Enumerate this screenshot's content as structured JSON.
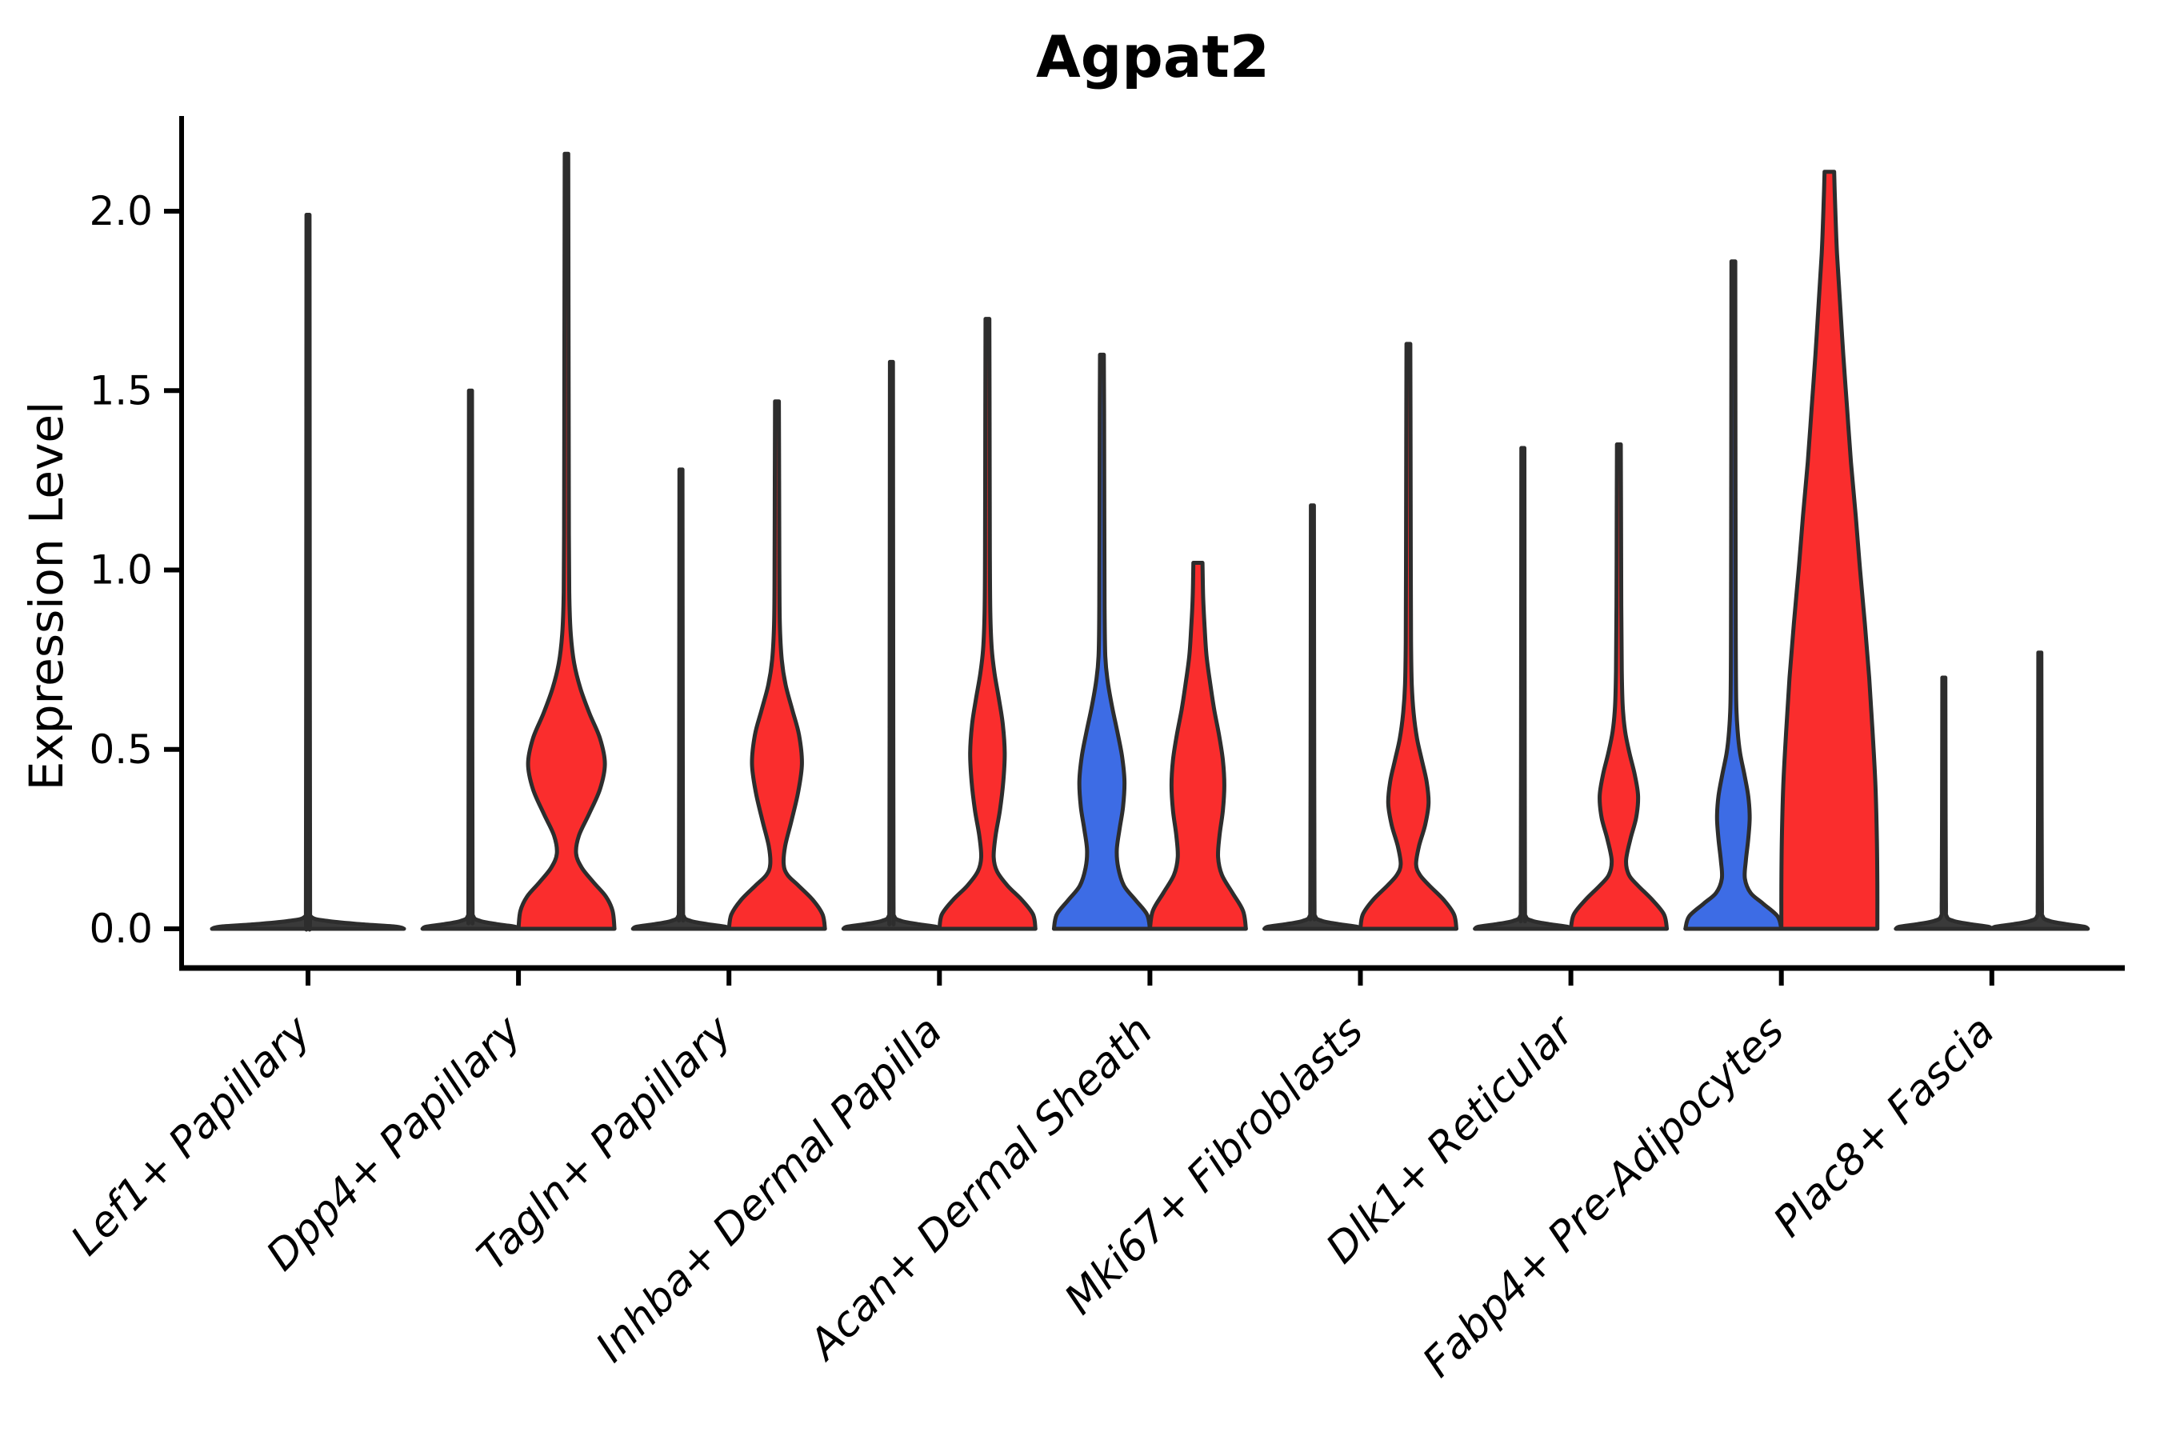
{
  "chart_data": {
    "type": "violin",
    "title": "Agpat2",
    "ylabel": "Expression Level",
    "xlabel": "",
    "grid": false,
    "legend": "none",
    "ylim": [
      -0.11,
      2.27
    ],
    "y_ticks": [
      {
        "value": 0.0,
        "label": "0.0"
      },
      {
        "value": 0.5,
        "label": "0.5"
      },
      {
        "value": 1.0,
        "label": "1.0"
      },
      {
        "value": 1.5,
        "label": "1.5"
      },
      {
        "value": 2.0,
        "label": "2.0"
      }
    ],
    "colors": {
      "red": "#fa2d2d",
      "blue": "#3d6ce5",
      "dark": "#3a3a3a",
      "edge": "#2d2d2d",
      "axis": "#000000"
    },
    "categories": [
      {
        "label": "Lef1+ Papillary",
        "violins": [
          {
            "side": "full",
            "color": "dark",
            "shape": "flat",
            "max": 1.99
          }
        ]
      },
      {
        "label": "Dpp4+ Papillary",
        "violins": [
          {
            "side": "left",
            "color": "dark",
            "shape": "flat",
            "max": 1.5
          },
          {
            "side": "right",
            "color": "red",
            "shape": "curve",
            "max": 2.16,
            "profile": [
              [
                0,
                1
              ],
              [
                0.05,
                0.96
              ],
              [
                0.09,
                0.82
              ],
              [
                0.13,
                0.56
              ],
              [
                0.17,
                0.32
              ],
              [
                0.21,
                0.2
              ],
              [
                0.26,
                0.26
              ],
              [
                0.32,
                0.47
              ],
              [
                0.39,
                0.7
              ],
              [
                0.46,
                0.8
              ],
              [
                0.53,
                0.7
              ],
              [
                0.6,
                0.48
              ],
              [
                0.67,
                0.29
              ],
              [
                0.74,
                0.16
              ],
              [
                0.82,
                0.09
              ],
              [
                0.92,
                0.06
              ],
              [
                1.1,
                0.05
              ],
              [
                1.5,
                0.045
              ],
              [
                1.9,
                0.04
              ],
              [
                2.16,
                0.037
              ]
            ]
          }
        ]
      },
      {
        "label": "Tagln+ Papillary",
        "violins": [
          {
            "side": "left",
            "color": "dark",
            "shape": "flat",
            "max": 1.28
          },
          {
            "side": "right",
            "color": "red",
            "shape": "curve",
            "max": 1.47,
            "profile": [
              [
                0,
                1
              ],
              [
                0.04,
                0.95
              ],
              [
                0.08,
                0.75
              ],
              [
                0.12,
                0.45
              ],
              [
                0.15,
                0.22
              ],
              [
                0.18,
                0.14
              ],
              [
                0.23,
                0.17
              ],
              [
                0.3,
                0.3
              ],
              [
                0.38,
                0.44
              ],
              [
                0.46,
                0.52
              ],
              [
                0.54,
                0.46
              ],
              [
                0.61,
                0.32
              ],
              [
                0.68,
                0.18
              ],
              [
                0.75,
                0.1
              ],
              [
                0.85,
                0.06
              ],
              [
                1.0,
                0.05
              ],
              [
                1.25,
                0.045
              ],
              [
                1.47,
                0.04
              ]
            ]
          }
        ]
      },
      {
        "label": "Inhba+ Dermal Papilla",
        "violins": [
          {
            "side": "left",
            "color": "dark",
            "shape": "flat",
            "max": 1.58
          },
          {
            "side": "right",
            "color": "red",
            "shape": "curve",
            "max": 1.7,
            "profile": [
              [
                0,
                1
              ],
              [
                0.04,
                0.95
              ],
              [
                0.08,
                0.72
              ],
              [
                0.12,
                0.42
              ],
              [
                0.16,
                0.2
              ],
              [
                0.2,
                0.13
              ],
              [
                0.26,
                0.17
              ],
              [
                0.33,
                0.26
              ],
              [
                0.41,
                0.33
              ],
              [
                0.49,
                0.36
              ],
              [
                0.57,
                0.32
              ],
              [
                0.64,
                0.24
              ],
              [
                0.71,
                0.15
              ],
              [
                0.78,
                0.09
              ],
              [
                0.88,
                0.06
              ],
              [
                1.05,
                0.05
              ],
              [
                1.4,
                0.045
              ],
              [
                1.7,
                0.04
              ]
            ]
          }
        ]
      },
      {
        "label": "Acan+ Dermal Sheath",
        "violins": [
          {
            "side": "left",
            "color": "blue",
            "shape": "curve",
            "max": 1.6,
            "profile": [
              [
                0,
                1
              ],
              [
                0.04,
                0.94
              ],
              [
                0.08,
                0.7
              ],
              [
                0.12,
                0.46
              ],
              [
                0.17,
                0.34
              ],
              [
                0.22,
                0.31
              ],
              [
                0.28,
                0.37
              ],
              [
                0.34,
                0.44
              ],
              [
                0.41,
                0.47
              ],
              [
                0.48,
                0.42
              ],
              [
                0.55,
                0.32
              ],
              [
                0.62,
                0.21
              ],
              [
                0.69,
                0.12
              ],
              [
                0.76,
                0.07
              ],
              [
                0.9,
                0.055
              ],
              [
                1.15,
                0.05
              ],
              [
                1.45,
                0.045
              ],
              [
                1.6,
                0.04
              ]
            ]
          },
          {
            "side": "right",
            "color": "red",
            "shape": "curve",
            "max": 1.02,
            "profile": [
              [
                0,
                1
              ],
              [
                0.05,
                0.94
              ],
              [
                0.1,
                0.72
              ],
              [
                0.15,
                0.5
              ],
              [
                0.2,
                0.42
              ],
              [
                0.26,
                0.45
              ],
              [
                0.33,
                0.52
              ],
              [
                0.4,
                0.55
              ],
              [
                0.47,
                0.52
              ],
              [
                0.54,
                0.44
              ],
              [
                0.61,
                0.34
              ],
              [
                0.68,
                0.26
              ],
              [
                0.76,
                0.18
              ],
              [
                0.84,
                0.14
              ],
              [
                0.92,
                0.11
              ],
              [
                1.02,
                0.095
              ]
            ]
          }
        ]
      },
      {
        "label": "Mki67+ Fibroblasts",
        "violins": [
          {
            "side": "left",
            "color": "dark",
            "shape": "flat",
            "max": 1.18
          },
          {
            "side": "right",
            "color": "red",
            "shape": "curve",
            "max": 1.63,
            "profile": [
              [
                0,
                1
              ],
              [
                0.04,
                0.95
              ],
              [
                0.08,
                0.74
              ],
              [
                0.12,
                0.44
              ],
              [
                0.15,
                0.24
              ],
              [
                0.18,
                0.16
              ],
              [
                0.23,
                0.22
              ],
              [
                0.29,
                0.35
              ],
              [
                0.35,
                0.42
              ],
              [
                0.41,
                0.38
              ],
              [
                0.47,
                0.28
              ],
              [
                0.53,
                0.18
              ],
              [
                0.6,
                0.11
              ],
              [
                0.68,
                0.07
              ],
              [
                0.8,
                0.055
              ],
              [
                1.0,
                0.05
              ],
              [
                1.35,
                0.045
              ],
              [
                1.63,
                0.04
              ]
            ]
          }
        ]
      },
      {
        "label": "Dlk1+ Reticular",
        "violins": [
          {
            "side": "left",
            "color": "dark",
            "shape": "flat",
            "max": 1.34
          },
          {
            "side": "right",
            "color": "red",
            "shape": "curve",
            "max": 1.35,
            "profile": [
              [
                0,
                1
              ],
              [
                0.04,
                0.94
              ],
              [
                0.08,
                0.7
              ],
              [
                0.12,
                0.4
              ],
              [
                0.15,
                0.21
              ],
              [
                0.19,
                0.15
              ],
              [
                0.25,
                0.24
              ],
              [
                0.31,
                0.36
              ],
              [
                0.37,
                0.4
              ],
              [
                0.43,
                0.33
              ],
              [
                0.49,
                0.22
              ],
              [
                0.55,
                0.13
              ],
              [
                0.62,
                0.08
              ],
              [
                0.72,
                0.06
              ],
              [
                0.9,
                0.05
              ],
              [
                1.15,
                0.045
              ],
              [
                1.35,
                0.04
              ]
            ]
          }
        ]
      },
      {
        "label": "Fabp4+ Pre-Adipocytes",
        "violins": [
          {
            "side": "left",
            "color": "blue",
            "shape": "curve",
            "max": 1.86,
            "profile": [
              [
                0,
                1
              ],
              [
                0.035,
                0.92
              ],
              [
                0.07,
                0.62
              ],
              [
                0.1,
                0.36
              ],
              [
                0.14,
                0.24
              ],
              [
                0.19,
                0.26
              ],
              [
                0.25,
                0.31
              ],
              [
                0.31,
                0.34
              ],
              [
                0.37,
                0.31
              ],
              [
                0.43,
                0.23
              ],
              [
                0.49,
                0.14
              ],
              [
                0.55,
                0.09
              ],
              [
                0.63,
                0.06
              ],
              [
                0.8,
                0.05
              ],
              [
                1.2,
                0.045
              ],
              [
                1.6,
                0.042
              ],
              [
                1.86,
                0.04
              ]
            ]
          },
          {
            "side": "right",
            "color": "red",
            "shape": "curve",
            "max": 2.11,
            "profile": [
              [
                0,
                1
              ],
              [
                0.12,
                1.0
              ],
              [
                0.25,
                0.99
              ],
              [
                0.4,
                0.96
              ],
              [
                0.55,
                0.9
              ],
              [
                0.7,
                0.83
              ],
              [
                0.85,
                0.74
              ],
              [
                1.0,
                0.64
              ],
              [
                1.15,
                0.55
              ],
              [
                1.3,
                0.45
              ],
              [
                1.45,
                0.37
              ],
              [
                1.6,
                0.29
              ],
              [
                1.75,
                0.22
              ],
              [
                1.88,
                0.16
              ],
              [
                1.98,
                0.13
              ],
              [
                2.06,
                0.11
              ],
              [
                2.11,
                0.1
              ]
            ]
          }
        ]
      },
      {
        "label": "Plac8+ Fascia",
        "violins": [
          {
            "side": "left",
            "color": "dark",
            "shape": "flat",
            "max": 0.7
          },
          {
            "side": "right",
            "color": "dark",
            "shape": "flat",
            "max": 0.77
          }
        ]
      }
    ]
  }
}
